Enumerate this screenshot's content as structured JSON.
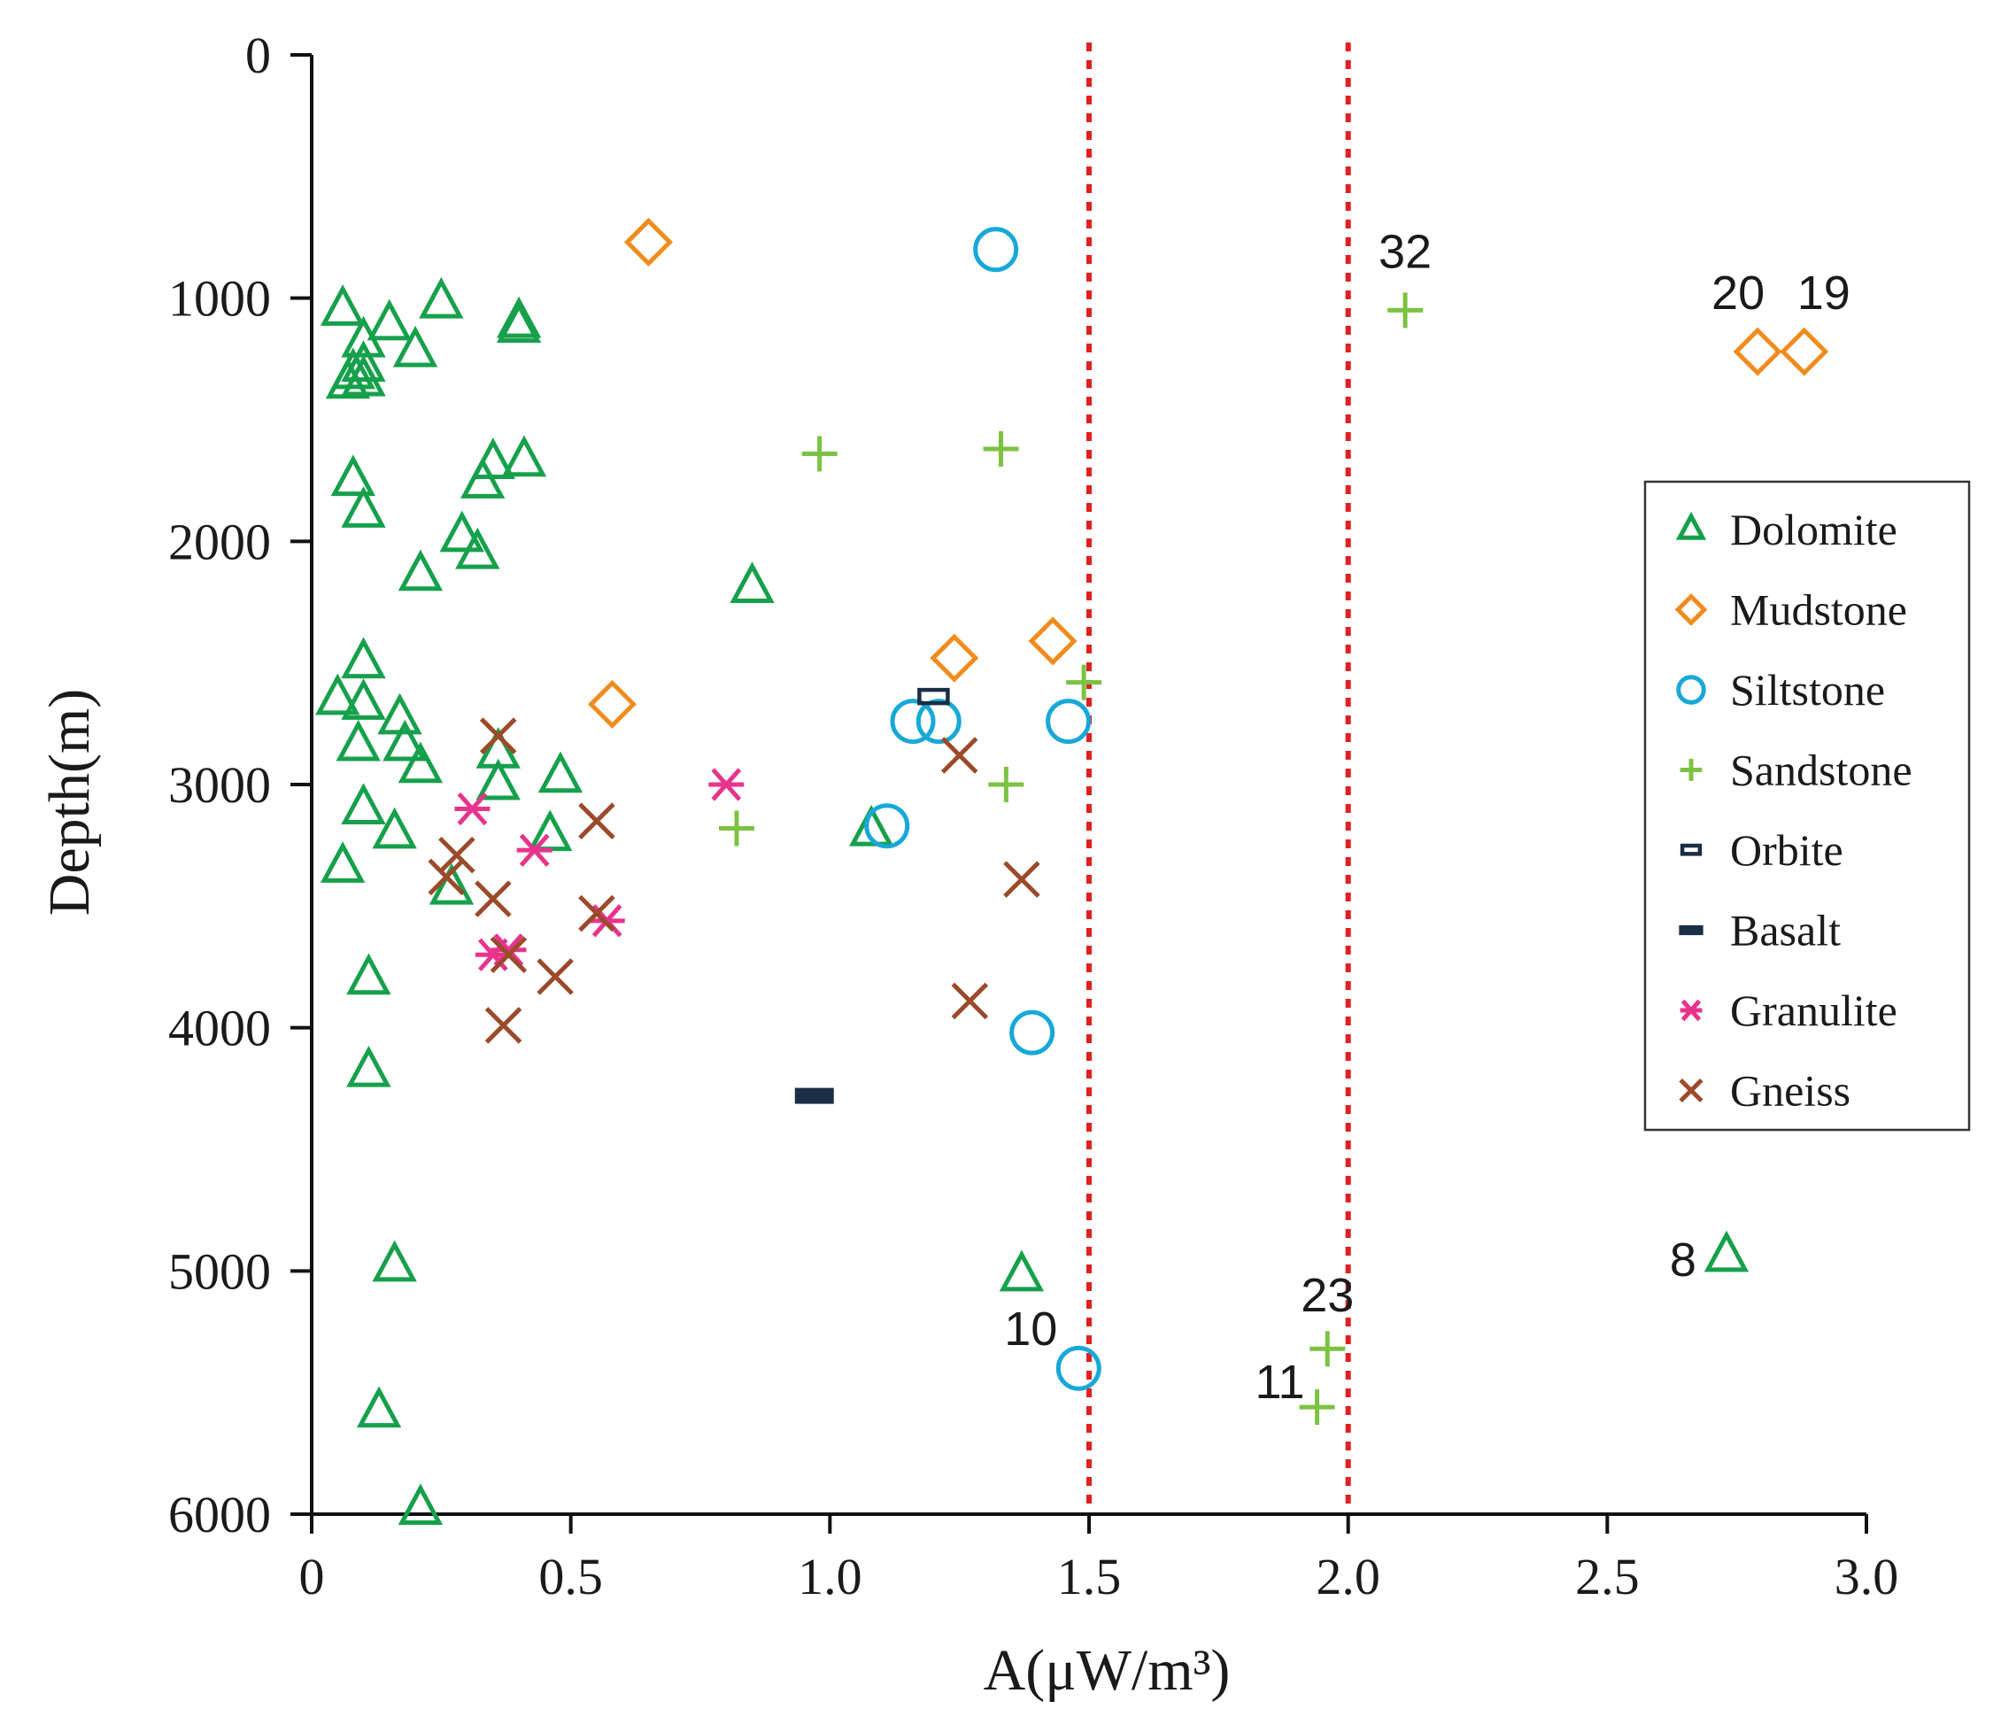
{
  "chart_data": {
    "type": "scatter",
    "xlabel": "A(μW/m³)",
    "ylabel": "Depth(m)",
    "xlim": [
      0,
      3.0
    ],
    "ylim": [
      0,
      6000
    ],
    "y_inverted": true,
    "x_ticks": [
      "0",
      "0.5",
      "1.0",
      "1.5",
      "2.0",
      "2.5",
      "3.0"
    ],
    "x_tick_values": [
      0,
      0.5,
      1.0,
      1.5,
      2.0,
      2.5,
      3.0
    ],
    "y_ticks": [
      "0",
      "1000",
      "2000",
      "3000",
      "4000",
      "5000",
      "6000"
    ],
    "y_tick_values": [
      0,
      1000,
      2000,
      3000,
      4000,
      5000,
      6000
    ],
    "grid": false,
    "legend_position": "right",
    "reference_lines": [
      {
        "axis": "x",
        "value": 1.5,
        "style": "dotted",
        "color": "#e02020"
      },
      {
        "axis": "x",
        "value": 2.0,
        "style": "dotted",
        "color": "#e02020"
      }
    ],
    "series": [
      {
        "name": "Dolomite",
        "marker": "triangle",
        "color": "#16a04b",
        "points": [
          [
            0.06,
            1050
          ],
          [
            0.25,
            1020
          ],
          [
            0.15,
            1110
          ],
          [
            0.1,
            1180
          ],
          [
            0.2,
            1220
          ],
          [
            0.08,
            1310
          ],
          [
            0.1,
            1280
          ],
          [
            0.1,
            1340
          ],
          [
            0.07,
            1350
          ],
          [
            0.4,
            1100
          ],
          [
            0.4,
            1120
          ],
          [
            0.08,
            1750
          ],
          [
            0.1,
            1880
          ],
          [
            0.33,
            1760
          ],
          [
            0.35,
            1680
          ],
          [
            0.41,
            1670
          ],
          [
            0.29,
            1980
          ],
          [
            0.32,
            2050
          ],
          [
            0.21,
            2140
          ],
          [
            0.85,
            2190
          ],
          [
            0.1,
            2500
          ],
          [
            0.05,
            2650
          ],
          [
            0.1,
            2670
          ],
          [
            0.17,
            2730
          ],
          [
            0.09,
            2840
          ],
          [
            0.18,
            2840
          ],
          [
            0.21,
            2930
          ],
          [
            0.36,
            2870
          ],
          [
            0.36,
            3000
          ],
          [
            0.48,
            2970
          ],
          [
            0.1,
            3100
          ],
          [
            0.16,
            3200
          ],
          [
            0.46,
            3210
          ],
          [
            0.06,
            3340
          ],
          [
            0.27,
            3430
          ],
          [
            1.08,
            3190
          ],
          [
            0.11,
            3800
          ],
          [
            0.11,
            4180
          ],
          [
            0.16,
            4980
          ],
          [
            1.37,
            5020
          ],
          [
            0.13,
            5580
          ],
          [
            0.21,
            5980
          ],
          [
            2.73,
            4940
          ]
        ]
      },
      {
        "name": "Mudstone",
        "marker": "diamond",
        "color": "#f08c1e",
        "points": [
          [
            0.65,
            770
          ],
          [
            1.24,
            2480
          ],
          [
            1.43,
            2410
          ],
          [
            0.58,
            2670
          ],
          [
            2.79,
            1220
          ],
          [
            2.88,
            1220
          ]
        ]
      },
      {
        "name": "Siltstone",
        "marker": "circle",
        "color": "#18a8d8",
        "points": [
          [
            1.32,
            800
          ],
          [
            1.16,
            2740
          ],
          [
            1.21,
            2740
          ],
          [
            1.46,
            2740
          ],
          [
            1.11,
            3170
          ],
          [
            1.39,
            4020
          ],
          [
            1.48,
            5400
          ]
        ]
      },
      {
        "name": "Sandstone",
        "marker": "plus",
        "color": "#7cc242",
        "points": [
          [
            2.11,
            1050
          ],
          [
            0.98,
            1640
          ],
          [
            1.33,
            1620
          ],
          [
            1.49,
            2580
          ],
          [
            1.34,
            3000
          ],
          [
            0.82,
            3180
          ],
          [
            1.96,
            5320
          ],
          [
            1.94,
            5560
          ]
        ]
      },
      {
        "name": "Orbite",
        "marker": "square-open",
        "color": "#1a2e45",
        "points": [
          [
            1.2,
            2640
          ]
        ]
      },
      {
        "name": "Basalt",
        "marker": "bar",
        "color": "#1a2e45",
        "points": [
          [
            0.97,
            4280
          ]
        ]
      },
      {
        "name": "Granulite",
        "marker": "asterisk",
        "color": "#e8338c",
        "points": [
          [
            0.8,
            3000
          ],
          [
            0.31,
            3100
          ],
          [
            0.43,
            3270
          ],
          [
            0.57,
            3560
          ],
          [
            0.35,
            3700
          ],
          [
            0.38,
            3680
          ]
        ]
      },
      {
        "name": "Gneiss",
        "marker": "x",
        "color": "#9b4a2a",
        "points": [
          [
            0.36,
            2800
          ],
          [
            0.55,
            3150
          ],
          [
            1.25,
            2880
          ],
          [
            0.28,
            3290
          ],
          [
            0.26,
            3380
          ],
          [
            0.35,
            3470
          ],
          [
            0.55,
            3530
          ],
          [
            0.38,
            3700
          ],
          [
            0.47,
            3790
          ],
          [
            0.37,
            3990
          ],
          [
            1.37,
            3390
          ],
          [
            1.27,
            3890
          ]
        ]
      }
    ],
    "annotations": [
      {
        "text": "32",
        "x": 2.11,
        "y": 1050
      },
      {
        "text": "20",
        "x": 2.79,
        "y": 1220
      },
      {
        "text": "19",
        "x": 2.88,
        "y": 1220
      },
      {
        "text": "10",
        "x": 1.48,
        "y": 5400
      },
      {
        "text": "23",
        "x": 1.96,
        "y": 5320
      },
      {
        "text": "11",
        "x": 1.94,
        "y": 5560
      },
      {
        "text": "8",
        "x": 2.73,
        "y": 4940
      }
    ]
  }
}
